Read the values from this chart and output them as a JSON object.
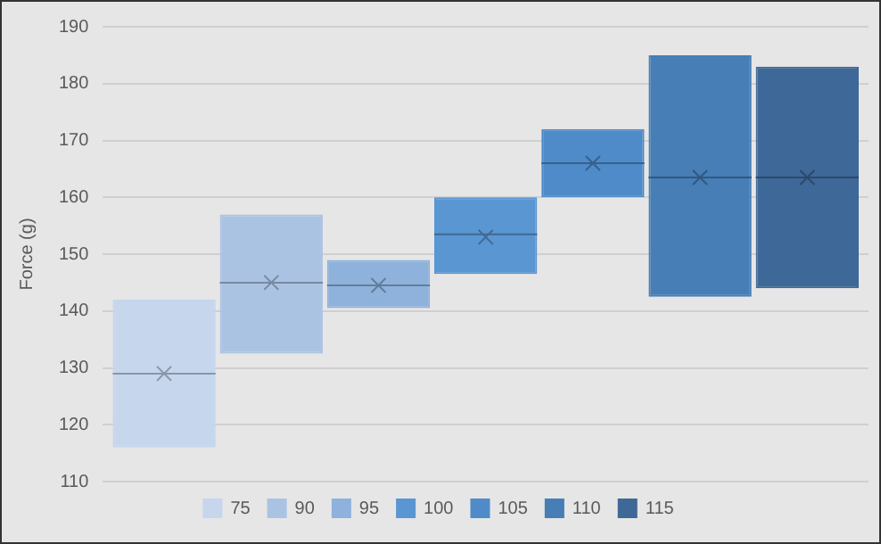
{
  "chart_data": {
    "type": "box",
    "ylabel": "Force (g)",
    "categories": [
      null
    ],
    "ylim": [
      110,
      190
    ],
    "yticks": [
      110,
      120,
      130,
      140,
      150,
      160,
      170,
      180,
      190
    ],
    "grid": "y",
    "legend": "bottom",
    "tick_labels": "y",
    "marker": "cross",
    "series": [
      {
        "name": "75",
        "color": "#c5d6ed",
        "boxes": [
          {
            "low": 116,
            "q1": 116,
            "median": 129,
            "q3": 142,
            "high": 142,
            "mean": 129
          }
        ]
      },
      {
        "name": "90",
        "color": "#abc3e3",
        "boxes": [
          {
            "low": 132.5,
            "q1": 132.5,
            "median": 145,
            "q3": 157,
            "high": 157,
            "mean": 145
          }
        ]
      },
      {
        "name": "95",
        "color": "#8eb2dc",
        "boxes": [
          {
            "low": 140.5,
            "q1": 140.5,
            "median": 144.5,
            "q3": 149,
            "high": 149,
            "mean": 144.5
          }
        ]
      },
      {
        "name": "100",
        "color": "#5a96d2",
        "boxes": [
          {
            "low": 146.5,
            "q1": 146.5,
            "median": 153.5,
            "q3": 160,
            "high": 160,
            "mean": 153
          }
        ]
      },
      {
        "name": "105",
        "color": "#4f8bc8",
        "boxes": [
          {
            "low": 160,
            "q1": 160,
            "median": 166,
            "q3": 172,
            "high": 172,
            "mean": 166
          }
        ]
      },
      {
        "name": "110",
        "color": "#467eb5",
        "boxes": [
          {
            "low": 142.5,
            "q1": 142.5,
            "median": 163.5,
            "q3": 185,
            "high": 185,
            "mean": 163.5
          }
        ]
      },
      {
        "name": "115",
        "color": "#3d6897",
        "boxes": [
          {
            "low": 144,
            "q1": 144,
            "median": 163.5,
            "q3": 183,
            "high": 183,
            "mean": 163.5
          }
        ]
      }
    ]
  }
}
